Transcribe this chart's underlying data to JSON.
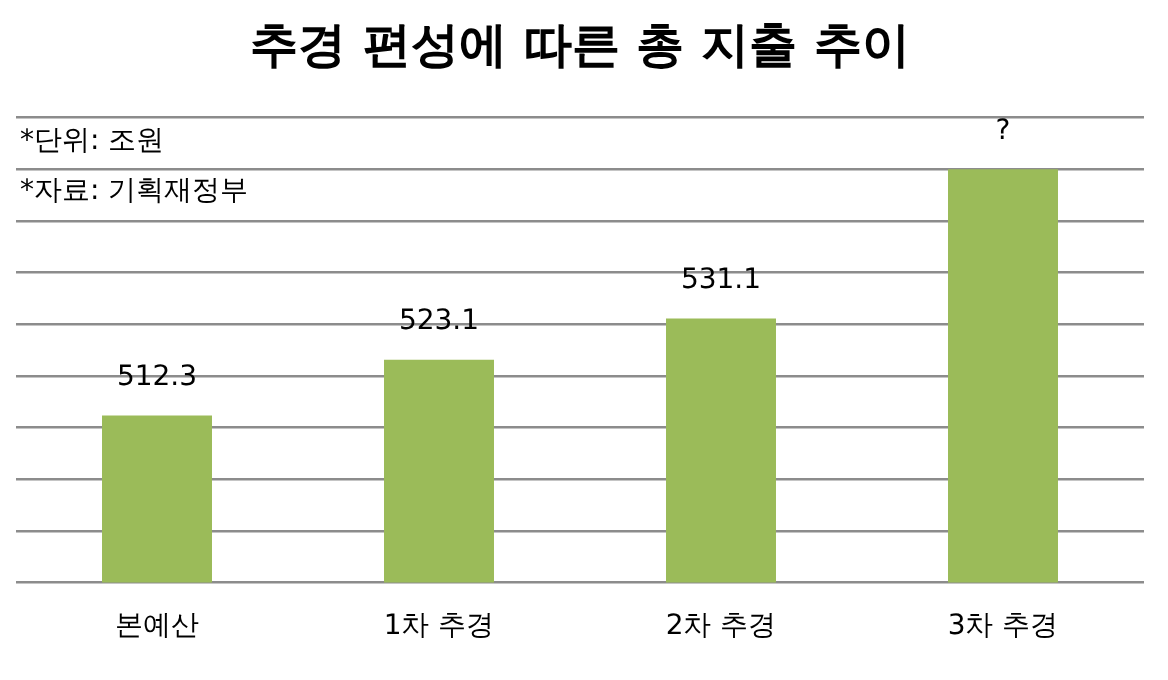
{
  "chart_data": {
    "type": "bar",
    "title": "추경 편성에 따른 총 지출 추이",
    "categories": [
      "본예산",
      "1차 추경",
      "2차 추경",
      "3차 추경"
    ],
    "values": [
      512.3,
      523.1,
      531.1,
      560
    ],
    "value_labels": [
      "512.3",
      "523.1",
      "531.1",
      "?"
    ],
    "color": "#9bbb59",
    "ylim": [
      480,
      570
    ],
    "yticks": [
      {
        "value": 480,
        "label": null
      },
      {
        "value": 490,
        "label": null
      },
      {
        "value": 500,
        "label": null
      },
      {
        "value": 510,
        "label": null
      },
      {
        "value": 520,
        "label": null
      },
      {
        "value": 530,
        "label": null
      },
      {
        "value": 540,
        "label": null
      },
      {
        "value": 550,
        "label": null
      },
      {
        "value": 560,
        "label": null
      },
      {
        "value": 570,
        "label": null
      }
    ],
    "tick_labels": "x",
    "grid": "y",
    "legend": false,
    "annotations": [
      "*단위: 조원",
      "*자료: 기획재정부"
    ]
  }
}
